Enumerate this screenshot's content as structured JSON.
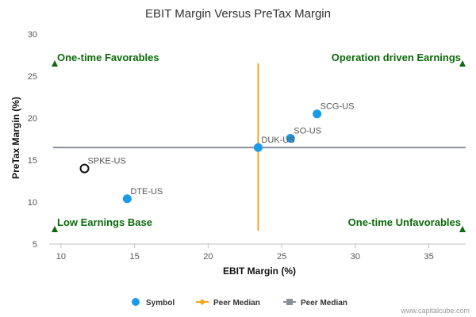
{
  "chart_data": {
    "type": "scatter",
    "title": "EBIT Margin Versus PreTax Margin",
    "xlabel": "EBIT Margin (%)",
    "ylabel": "PreTax Margin (%)",
    "xlim": [
      9.2,
      37.5
    ],
    "ylim": [
      5,
      30
    ],
    "xticks": [
      10,
      15,
      20,
      25,
      30,
      35
    ],
    "yticks": [
      5,
      10,
      15,
      20,
      25,
      30
    ],
    "points": [
      {
        "label": "SCG-US",
        "x": 27.4,
        "y": 20.5,
        "style": "filled"
      },
      {
        "label": "SO-US",
        "x": 25.6,
        "y": 17.6,
        "style": "filled"
      },
      {
        "label": "DUK-US",
        "x": 23.4,
        "y": 16.5,
        "style": "filled"
      },
      {
        "label": "SPKE-US",
        "x": 11.6,
        "y": 14.0,
        "style": "hollow"
      },
      {
        "label": "DTE-US",
        "x": 14.5,
        "y": 10.4,
        "style": "filled"
      }
    ],
    "peer_median_x": 23.4,
    "peer_median_y": 16.5,
    "quadrants": {
      "top_left": "One-time Favorables",
      "top_right": "Operation driven Earnings",
      "bottom_left": "Low Earnings Base",
      "bottom_right": "One-time Unfavorables"
    },
    "legend": [
      {
        "name": "Symbol",
        "color": "#1a9be8"
      },
      {
        "name": "Peer Median",
        "color": "#f5a623"
      },
      {
        "name": "Peer Median",
        "color": "#8a8f99"
      }
    ],
    "credit": "www.capitalcube.com",
    "colors": {
      "point": "#1a9be8",
      "hollow_point": "#111111",
      "v_median": "#f5a623",
      "h_median": "#8a8f99",
      "quadrant": "#0a6b0a"
    }
  }
}
